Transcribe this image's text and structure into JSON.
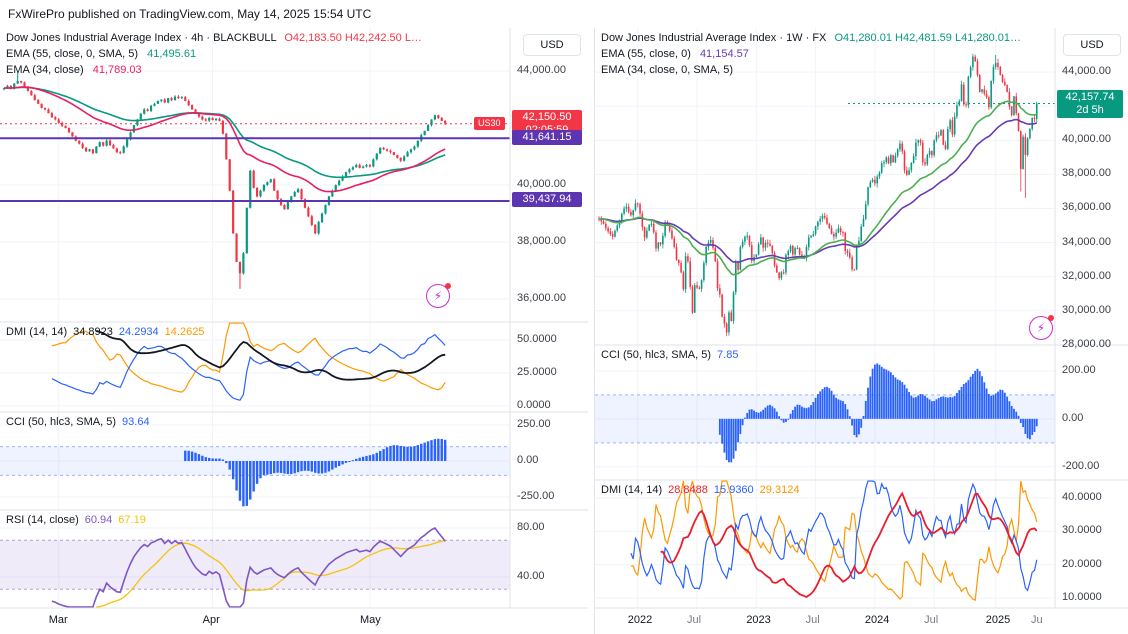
{
  "attribution": "FxWirePro published on TradingView.com, May 14, 2025 15:54 UTC",
  "colors": {
    "up": "#089981",
    "down": "#f23645",
    "grid": "#f0f3fa",
    "border": "#e0e3eb",
    "text": "#131722",
    "muted": "#787b86",
    "hist": "#2962ff",
    "band_fill": "rgba(41,98,255,0.08)",
    "band_line": "rgba(41,98,255,0.45)",
    "rsi_fill": "rgba(126,87,194,0.12)",
    "rsi_line_ref": "rgba(126,87,194,0.55)",
    "spark": "#cb2ecb"
  },
  "chart_data": [
    {
      "type": "candlestick",
      "title": "Dow Jones Industrial Average Index · 4h · BLACKBULL",
      "ohl": "O42,183.50  H42,242.50  L…",
      "ohl_color": "#f23645",
      "legend": [
        {
          "label": "EMA (55, close, 0, SMA, 5)",
          "value": "41,495.61",
          "color": "#089981"
        },
        {
          "label": "EMA (34, close)",
          "value": "41,789.03",
          "color": "#e91e63"
        }
      ],
      "axis_currency": "USD",
      "price_ticks": [
        {
          "v": 44000,
          "t": "44,000.00"
        },
        {
          "v": 42000,
          "t": "42,000.00"
        },
        {
          "v": 40000,
          "t": "40,000.00"
        },
        {
          "v": 38000,
          "t": "38,000.00"
        },
        {
          "v": 36000,
          "t": "36,000.00"
        }
      ],
      "price_range": {
        "min": 35190,
        "max": 45510
      },
      "badges": [
        {
          "price": 42150.5,
          "text": "42,150.50",
          "sub": "02:05:59",
          "bg": "#f23645"
        },
        {
          "price": 41641.15,
          "text": "41,641.15",
          "bg": "#5e35b1"
        },
        {
          "price": 39437.94,
          "text": "39,437.94",
          "bg": "#5e35b1"
        }
      ],
      "levels": [
        {
          "price": 42150.5,
          "color": "#f23645",
          "dash": "2 3",
          "width": 1,
          "from": 0,
          "tag": "US30"
        },
        {
          "price": 41641.15,
          "color": "#5e35b1",
          "dash": "",
          "width": 2,
          "from": 0
        },
        {
          "price": 39437.94,
          "color": "#5e35b1",
          "dash": "",
          "width": 2,
          "from": 0
        }
      ],
      "emas": [
        {
          "period": 55,
          "color": "#089981"
        },
        {
          "period": 34,
          "color": "#e91e63"
        }
      ],
      "time_ticks": [
        {
          "i": 16,
          "label": "Mar",
          "minor": false
        },
        {
          "i": 61,
          "label": "Apr",
          "minor": false
        },
        {
          "i": 107,
          "label": "May",
          "minor": false
        }
      ],
      "closes": [
        43400,
        43480,
        43380,
        43560,
        43650,
        43600,
        43450,
        43300,
        43150,
        42980,
        42850,
        42700,
        42650,
        42520,
        42380,
        42300,
        42180,
        42080,
        42000,
        41850,
        41700,
        41550,
        41450,
        41300,
        41180,
        41250,
        41120,
        41350,
        41500,
        41380,
        41560,
        41400,
        41280,
        41150,
        41130,
        41350,
        41600,
        41850,
        42100,
        42300,
        42500,
        42650,
        42600,
        42780,
        42850,
        42950,
        43000,
        42900,
        43050,
        42980,
        43100,
        43050,
        43080,
        42950,
        42800,
        42650,
        42500,
        42400,
        42300,
        42260,
        42350,
        42280,
        42320,
        42250,
        41800,
        40900,
        39800,
        38300,
        37300,
        36900,
        37600,
        39200,
        40500,
        39900,
        39600,
        39800,
        40000,
        40100,
        40200,
        39800,
        39500,
        39300,
        39150,
        39400,
        39600,
        39750,
        39850,
        39500,
        39200,
        38900,
        38600,
        38300,
        38700,
        39000,
        39300,
        39600,
        39800,
        40000,
        40150,
        40300,
        40450,
        40550,
        40620,
        40700,
        40600,
        40650,
        40700,
        40650,
        40900,
        41100,
        41300,
        41250,
        41200,
        41150,
        41050,
        40950,
        40850,
        41000,
        41150,
        41250,
        41350,
        41550,
        41750,
        41900,
        42100,
        42300,
        42450,
        42350,
        42250,
        42150
      ],
      "wick_overrides": {
        "4": {
          "high": 43950
        },
        "69": {
          "low": 36350
        }
      },
      "panels": [
        {
          "type": "dmi",
          "label": "DMI (14, 14)",
          "values": [
            {
              "t": "34.8923",
              "c": "#131722"
            },
            {
              "t": "24.2934",
              "c": "#2962ff"
            },
            {
              "t": "14.2625",
              "c": "#ff9800"
            }
          ],
          "colors": {
            "adx": "#131722",
            "plus": "#2962ff",
            "minus": "#ff9800"
          },
          "ticks": [
            {
              "v": 50,
              "t": "50.0000"
            },
            {
              "v": 25,
              "t": "25.0000"
            },
            {
              "v": 0,
              "t": "0.0000"
            }
          ],
          "range": {
            "min": -4.6,
            "max": 63.6
          }
        },
        {
          "type": "cci",
          "label": "CCI (50, hlc3, SMA, 5)",
          "values": [
            {
              "t": "93.64",
              "c": "#2962ff"
            }
          ],
          "band": 100,
          "ticks": [
            {
              "v": 250,
              "t": "250.00"
            },
            {
              "v": 0,
              "t": "0.00"
            },
            {
              "v": -250,
              "t": "-250.00"
            }
          ],
          "range": {
            "min": -340,
            "max": 340
          }
        },
        {
          "type": "rsi",
          "label": "RSI (14, close)",
          "values": [
            {
              "t": "60.94",
              "c": "#7e57c2"
            },
            {
              "t": "67.19",
              "c": "#f6c309"
            }
          ],
          "colors": {
            "rsi": "#7e57c2",
            "ma": "#f6c309"
          },
          "band": [
            30,
            70
          ],
          "ticks": [
            {
              "v": 80,
              "t": "80.00"
            },
            {
              "v": 40,
              "t": "40.00"
            }
          ],
          "range": {
            "min": 14.7,
            "max": 94.7
          }
        }
      ]
    },
    {
      "type": "candlestick",
      "title": "Dow Jones Industrial Average Index · 1W · FX",
      "ohl": "O41,280.01  H42,481.59  L41,280.01…",
      "ohl_color": "#089981",
      "legend": [
        {
          "label": "EMA (55, close, 0)",
          "value": "41,154.57",
          "color": "#673ab7"
        },
        {
          "label": "EMA (34, close, 0, SMA, 5)",
          "value": "",
          "color": "#4caf50"
        }
      ],
      "axis_currency": "USD",
      "price_ticks": [
        {
          "v": 44000,
          "t": "44,000.00"
        },
        {
          "v": 42000,
          "t": "42,000.00"
        },
        {
          "v": 40000,
          "t": "40,000.00"
        },
        {
          "v": 38000,
          "t": "38,000.00"
        },
        {
          "v": 36000,
          "t": "36,000.00"
        },
        {
          "v": 34000,
          "t": "34,000.00"
        },
        {
          "v": 32000,
          "t": "32,000.00"
        },
        {
          "v": 30000,
          "t": "30,000.00"
        },
        {
          "v": 28000,
          "t": "28,000.00"
        }
      ],
      "price_range": {
        "min": 27990,
        "max": 46590
      },
      "badges": [
        {
          "price": 42157.74,
          "text": "42,157.74",
          "sub": "2d 5h",
          "bg": "#089981"
        }
      ],
      "levels": [
        {
          "price": 42157.74,
          "color": "#089981",
          "dash": "2 3",
          "width": 1,
          "from": 0.55
        }
      ],
      "emas": [
        {
          "period": 55,
          "color": "#673ab7"
        },
        {
          "period": 34,
          "color": "#4caf50"
        }
      ],
      "time_ticks": [
        {
          "i": 17,
          "label": "2022",
          "minor": false
        },
        {
          "i": 43,
          "label": "Jul",
          "minor": true
        },
        {
          "i": 69,
          "label": "2023",
          "minor": false
        },
        {
          "i": 95,
          "label": "Jul",
          "minor": true
        },
        {
          "i": 121,
          "label": "2024",
          "minor": false
        },
        {
          "i": 147,
          "label": "Jul",
          "minor": true
        },
        {
          "i": 174,
          "label": "2025",
          "minor": false
        },
        {
          "i": 200,
          "label": "Ju",
          "minor": true
        }
      ],
      "closes": [
        35400,
        35250,
        35100,
        34850,
        34650,
        34500,
        34350,
        34700,
        35000,
        35250,
        35700,
        36000,
        36100,
        35800,
        35600,
        35900,
        36300,
        36250,
        35700,
        34900,
        34300,
        34700,
        35050,
        35100,
        34600,
        33650,
        34000,
        33900,
        34400,
        35200,
        35000,
        34700,
        34250,
        33750,
        32980,
        32800,
        32250,
        31260,
        33200,
        32900,
        31400,
        29890,
        31500,
        31350,
        31290,
        31800,
        32800,
        33750,
        34000,
        34150,
        33700,
        32900,
        31320,
        30950,
        29650,
        29250,
        28730,
        29900,
        29400,
        31080,
        32860,
        32400,
        33750,
        34050,
        34347,
        34400,
        33850,
        32920,
        33147,
        33300,
        33900,
        34300,
        33700,
        33980,
        33926,
        33800,
        33400,
        32650,
        32250,
        31910,
        32250,
        32240,
        33274,
        33500,
        33800,
        33300,
        33670,
        33674,
        33300,
        33093,
        33100,
        33730,
        34299,
        34400,
        34500,
        34950,
        35230,
        35400,
        35560,
        35459,
        35100,
        34850,
        34500,
        34347,
        34580,
        34840,
        34620,
        34580,
        33508,
        33400,
        33130,
        32420,
        32418,
        33840,
        34100,
        34950,
        35390,
        36245,
        37250,
        37560,
        37690,
        37470,
        37870,
        38100,
        38650,
        38720,
        38990,
        38650,
        39130,
        38720,
        39090,
        39475,
        39807,
        39350,
        38240,
        37986,
        38240,
        38675,
        39070,
        39870,
        40004,
        39870,
        38710,
        38589,
        39150,
        39375,
        39120,
        40000,
        40290,
        40288,
        40600,
        39737,
        39498,
        40660,
        41175,
        40345,
        41394,
        42060,
        42310,
        43276,
        42115,
        42052,
        43730,
        44297,
        44911,
        44643,
        43830,
        42840,
        42992,
        42732,
        42530,
        41938,
        43490,
        44304,
        44545,
        44303,
        43840,
        43428,
        43240,
        42840,
        41985,
        41488,
        42583,
        41583,
        40546,
        38315,
        40213,
        39143,
        40113,
        40670,
        41317,
        41249,
        42157
      ],
      "wick_overrides": {
        "164": {
          "high": 45073
        },
        "174": {
          "high": 45010
        },
        "185": {
          "low": 37000
        },
        "187": {
          "low": 36610
        }
      },
      "panels": [
        {
          "type": "cci",
          "label": "CCI (50, hlc3, SMA, 5)",
          "values": [
            {
              "t": "7.85",
              "c": "#2962ff"
            }
          ],
          "band": 100,
          "ticks": [
            {
              "v": 200,
              "t": "200.00"
            },
            {
              "v": 0,
              "t": "0.00"
            },
            {
              "v": -200,
              "t": "-200.00"
            }
          ],
          "range": {
            "min": -255,
            "max": 308
          }
        },
        {
          "type": "dmi",
          "label": "DMI (14, 14)",
          "values": [
            {
              "t": "28.8488",
              "c": "#e91e2c"
            },
            {
              "t": "15.9360",
              "c": "#2962ff"
            },
            {
              "t": "29.3124",
              "c": "#ff9800"
            }
          ],
          "colors": {
            "adx": "#e91e2c",
            "plus": "#2962ff",
            "minus": "#ff9800"
          },
          "ticks": [
            {
              "v": 40,
              "t": "40.0000"
            },
            {
              "v": 30,
              "t": "30.0000"
            },
            {
              "v": 20,
              "t": "20.0000"
            },
            {
              "v": 10,
              "t": "10.0000"
            }
          ],
          "range": {
            "min": 7,
            "max": 45.4
          }
        }
      ]
    }
  ]
}
